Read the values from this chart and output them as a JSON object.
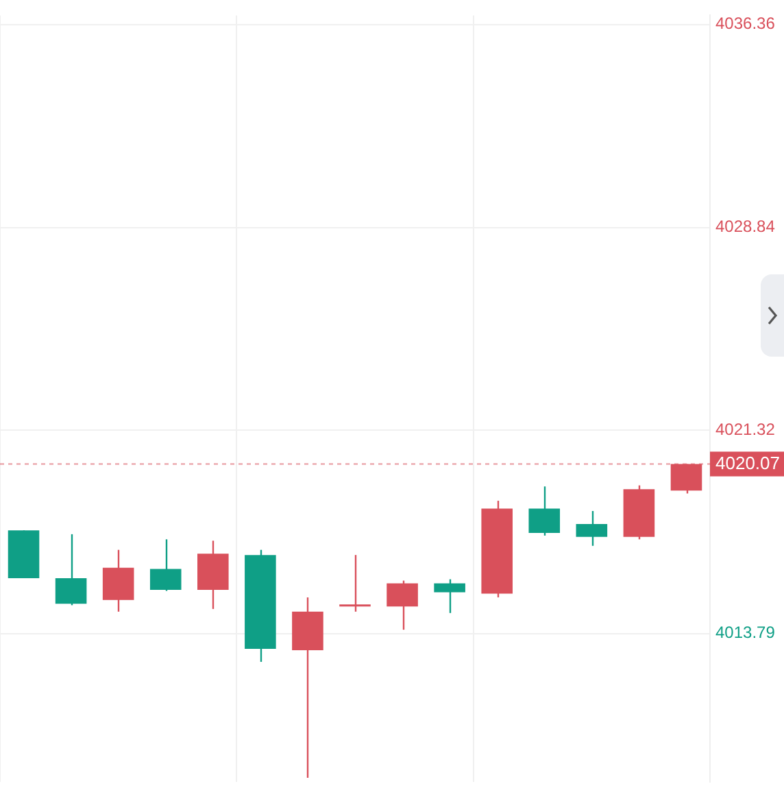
{
  "chart_data": {
    "type": "candlestick",
    "categories": [
      null,
      null,
      null,
      null,
      null,
      null,
      null,
      null,
      null,
      null,
      null,
      null,
      null,
      null,
      null
    ],
    "ohlc": [
      [
        4017.61,
        4017.61,
        4015.84,
        4015.84
      ],
      [
        4015.84,
        4017.47,
        4014.84,
        4014.89
      ],
      [
        4015.03,
        4016.89,
        4014.6,
        4016.23
      ],
      [
        4016.18,
        4017.28,
        4015.37,
        4015.41
      ],
      [
        4015.41,
        4017.23,
        4014.7,
        4016.75
      ],
      [
        4016.7,
        4016.89,
        4012.74,
        4013.22
      ],
      [
        4013.17,
        4015.13,
        4008.44,
        4014.6
      ],
      [
        4014.79,
        4016.7,
        4014.6,
        4014.84
      ],
      [
        4014.79,
        4015.75,
        4013.93,
        4015.65
      ],
      [
        4015.65,
        4015.8,
        4014.55,
        4015.32
      ],
      [
        4015.27,
        4018.71,
        4015.13,
        4018.42
      ],
      [
        4018.42,
        4019.24,
        4017.42,
        4017.52
      ],
      [
        4017.85,
        4018.33,
        4017.04,
        4017.37
      ],
      [
        4017.37,
        4019.28,
        4017.28,
        4019.14
      ],
      [
        4019.09,
        4020.07,
        4018.98,
        4020.07
      ]
    ],
    "colors": [
      "#0f9f86",
      "#0f9f86",
      "#d9505b",
      "#0f9f86",
      "#d9505b",
      "#0f9f86",
      "#d9505b",
      "#d9505b",
      "#d9505b",
      "#0f9f86",
      "#d9505b",
      "#0f9f86",
      "#0f9f86",
      "#d9505b",
      "#d9505b"
    ],
    "ylim": [
      4008.3,
      4036.7
    ],
    "yticks": [
      4013.79,
      4021.32,
      4028.84,
      4036.36
    ],
    "ref_lines": [
      {
        "axis": "y",
        "value": 4020.07,
        "label": "4020.07",
        "color": "#d9505b",
        "line_style": "dashed"
      }
    ],
    "grid": true,
    "tick_labels": "y"
  }
}
